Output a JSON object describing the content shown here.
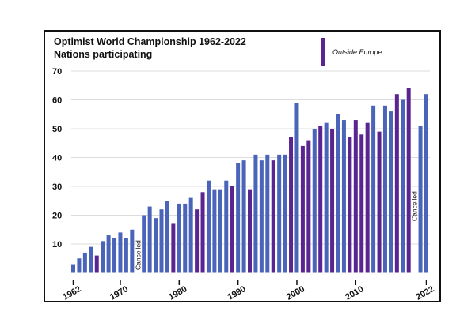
{
  "chart_data": {
    "type": "bar",
    "title": "Optimist World Championship 1962-2022",
    "subtitle": "Nations participating",
    "xlabel": "",
    "ylabel": "",
    "ylim": [
      0,
      70
    ],
    "yticks": [
      10,
      20,
      30,
      40,
      50,
      60,
      70
    ],
    "xticks": [
      "1962",
      "1970",
      "1980",
      "1990",
      "2000",
      "2010",
      "2022"
    ],
    "grid": true,
    "legend": {
      "position": "top-right",
      "entries": [
        {
          "label": "Outside Europe",
          "color": "#5a2591"
        }
      ]
    },
    "colors": {
      "europe": "#4a64b9",
      "outside_europe": "#5a2591"
    },
    "cancelled_label": "Cancelled",
    "data": [
      {
        "year": 1962,
        "value": 3,
        "outside": false
      },
      {
        "year": 1963,
        "value": 5,
        "outside": false
      },
      {
        "year": 1964,
        "value": 7,
        "outside": false
      },
      {
        "year": 1965,
        "value": 9,
        "outside": false
      },
      {
        "year": 1966,
        "value": 6,
        "outside": true
      },
      {
        "year": 1967,
        "value": 11,
        "outside": false
      },
      {
        "year": 1968,
        "value": 13,
        "outside": false
      },
      {
        "year": 1969,
        "value": 12,
        "outside": false
      },
      {
        "year": 1970,
        "value": 14,
        "outside": false
      },
      {
        "year": 1971,
        "value": 12,
        "outside": false
      },
      {
        "year": 1972,
        "value": 15,
        "outside": false
      },
      {
        "year": 1973,
        "value": null,
        "cancelled": true
      },
      {
        "year": 1974,
        "value": 20,
        "outside": false
      },
      {
        "year": 1975,
        "value": 23,
        "outside": false
      },
      {
        "year": 1976,
        "value": 19,
        "outside": false
      },
      {
        "year": 1977,
        "value": 22,
        "outside": false
      },
      {
        "year": 1978,
        "value": 25,
        "outside": false
      },
      {
        "year": 1979,
        "value": 17,
        "outside": true
      },
      {
        "year": 1980,
        "value": 24,
        "outside": false
      },
      {
        "year": 1981,
        "value": 24,
        "outside": false
      },
      {
        "year": 1982,
        "value": 26,
        "outside": false
      },
      {
        "year": 1983,
        "value": 22,
        "outside": true
      },
      {
        "year": 1984,
        "value": 28,
        "outside": true
      },
      {
        "year": 1985,
        "value": 32,
        "outside": false
      },
      {
        "year": 1986,
        "value": 29,
        "outside": false
      },
      {
        "year": 1987,
        "value": 29,
        "outside": false
      },
      {
        "year": 1988,
        "value": 32,
        "outside": false
      },
      {
        "year": 1989,
        "value": 30,
        "outside": true
      },
      {
        "year": 1990,
        "value": 38,
        "outside": false
      },
      {
        "year": 1991,
        "value": 39,
        "outside": false
      },
      {
        "year": 1992,
        "value": 29,
        "outside": true
      },
      {
        "year": 1993,
        "value": 41,
        "outside": false
      },
      {
        "year": 1994,
        "value": 39,
        "outside": false
      },
      {
        "year": 1995,
        "value": 41,
        "outside": false
      },
      {
        "year": 1996,
        "value": 39,
        "outside": true
      },
      {
        "year": 1997,
        "value": 41,
        "outside": false
      },
      {
        "year": 1998,
        "value": 41,
        "outside": false
      },
      {
        "year": 1999,
        "value": 47,
        "outside": true
      },
      {
        "year": 2000,
        "value": 59,
        "outside": false
      },
      {
        "year": 2001,
        "value": 44,
        "outside": true
      },
      {
        "year": 2002,
        "value": 46,
        "outside": true
      },
      {
        "year": 2003,
        "value": 50,
        "outside": false
      },
      {
        "year": 2004,
        "value": 51,
        "outside": true
      },
      {
        "year": 2005,
        "value": 52,
        "outside": false
      },
      {
        "year": 2006,
        "value": 50,
        "outside": true
      },
      {
        "year": 2007,
        "value": 55,
        "outside": false
      },
      {
        "year": 2008,
        "value": 53,
        "outside": false
      },
      {
        "year": 2009,
        "value": 47,
        "outside": true
      },
      {
        "year": 2010,
        "value": 53,
        "outside": true
      },
      {
        "year": 2011,
        "value": 48,
        "outside": true
      },
      {
        "year": 2012,
        "value": 52,
        "outside": true
      },
      {
        "year": 2013,
        "value": 58,
        "outside": false
      },
      {
        "year": 2014,
        "value": 49,
        "outside": true
      },
      {
        "year": 2015,
        "value": 58,
        "outside": false
      },
      {
        "year": 2016,
        "value": 56,
        "outside": false
      },
      {
        "year": 2017,
        "value": 62,
        "outside": true
      },
      {
        "year": 2018,
        "value": 60,
        "outside": false
      },
      {
        "year": 2019,
        "value": 64,
        "outside": true
      },
      {
        "year": 2020,
        "value": null,
        "cancelled": true
      },
      {
        "year": 2021,
        "value": 51,
        "outside": false
      },
      {
        "year": 2022,
        "value": 62,
        "outside": false
      }
    ]
  }
}
